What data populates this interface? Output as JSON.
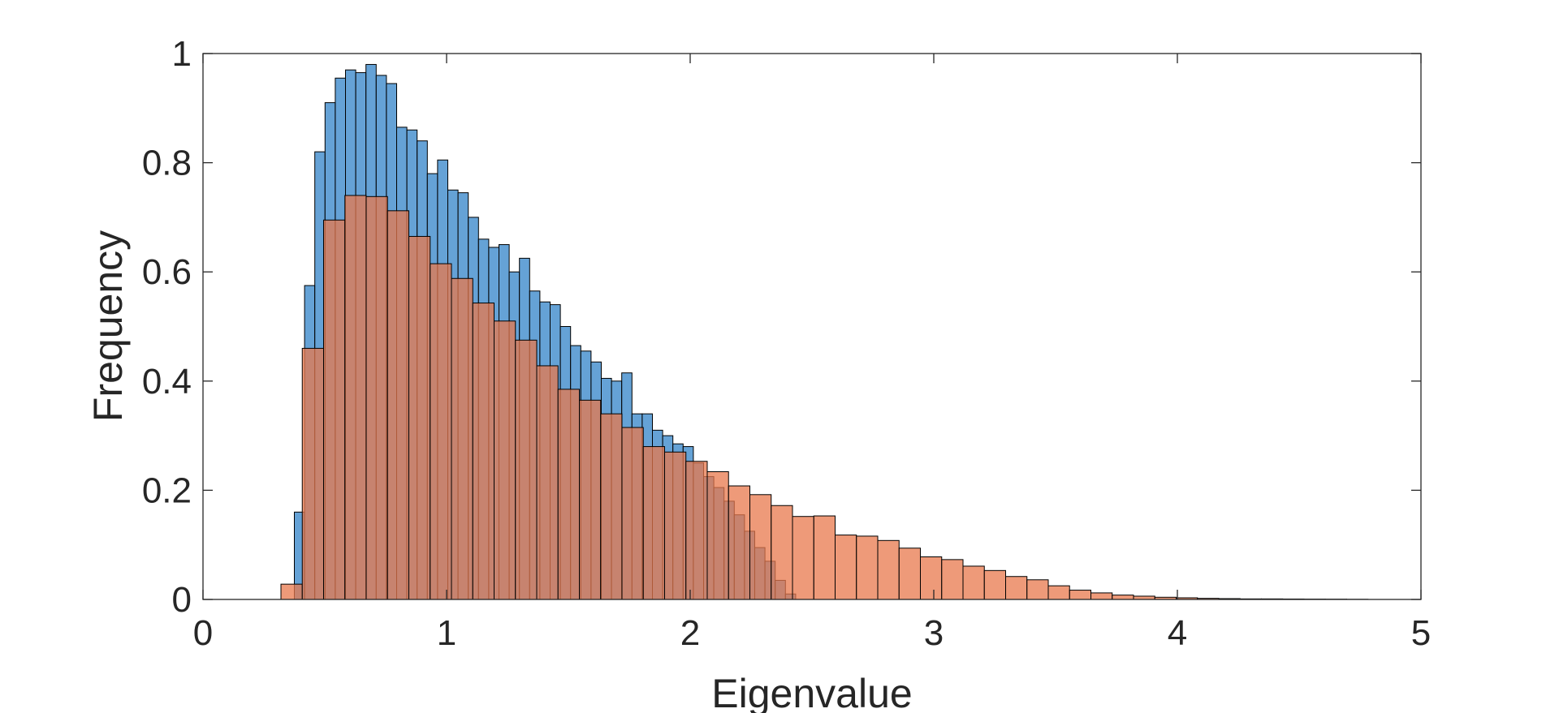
{
  "chart_data": {
    "type": "bar",
    "chart_kind": "overlaid histogram",
    "xlabel": "Eigenvalue",
    "ylabel": "Frequency",
    "xlim": [
      0,
      5
    ],
    "ylim": [
      0,
      1
    ],
    "xticks": [
      0,
      1,
      2,
      3,
      4,
      5
    ],
    "xtick_labels": [
      "0",
      "1",
      "2",
      "3",
      "4",
      "5"
    ],
    "yticks": [
      0,
      0.2,
      0.4,
      0.6,
      0.8,
      1
    ],
    "ytick_labels": [
      "0",
      "0.2",
      "0.4",
      "0.6",
      "0.8",
      "1"
    ],
    "grid": false,
    "legend": "none",
    "series": [
      {
        "color": "#4a92cf",
        "opacity": 0.85,
        "bin_start": 0.375,
        "bin_width": 0.042,
        "values": [
          0.16,
          0.575,
          0.82,
          0.91,
          0.955,
          0.97,
          0.965,
          0.98,
          0.96,
          0.945,
          0.865,
          0.86,
          0.84,
          0.78,
          0.805,
          0.75,
          0.745,
          0.7,
          0.66,
          0.645,
          0.65,
          0.6,
          0.625,
          0.565,
          0.545,
          0.54,
          0.5,
          0.465,
          0.455,
          0.435,
          0.405,
          0.4,
          0.415,
          0.34,
          0.34,
          0.31,
          0.3,
          0.285,
          0.28,
          0.25,
          0.225,
          0.205,
          0.18,
          0.155,
          0.125,
          0.095,
          0.07,
          0.035,
          0.01
        ]
      },
      {
        "color": "#e8784c",
        "opacity": 0.75,
        "bin_start": 0.32,
        "bin_width": 0.0875,
        "values": [
          0.028,
          0.46,
          0.695,
          0.74,
          0.738,
          0.712,
          0.665,
          0.615,
          0.588,
          0.543,
          0.51,
          0.475,
          0.428,
          0.385,
          0.365,
          0.34,
          0.315,
          0.28,
          0.27,
          0.253,
          0.234,
          0.208,
          0.192,
          0.172,
          0.152,
          0.153,
          0.118,
          0.116,
          0.108,
          0.094,
          0.078,
          0.073,
          0.061,
          0.053,
          0.042,
          0.036,
          0.025,
          0.017,
          0.012,
          0.008,
          0.006,
          0.004,
          0.003,
          0.002,
          0.0015,
          0.001,
          0.001,
          0.0008,
          0.0006,
          0.0005,
          0.0003
        ]
      }
    ]
  }
}
